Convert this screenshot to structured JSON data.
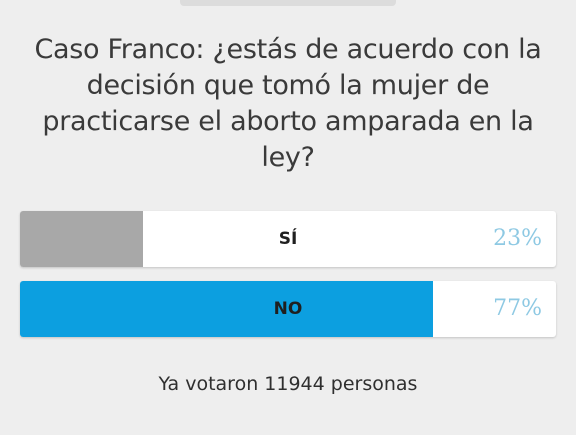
{
  "poll": {
    "question": "Caso Franco: ¿estás de acuerdo con la decisión que tomó la mujer de practicarse el aborto amparada en la ley?",
    "options": [
      {
        "label": "SÍ",
        "percent_label": "23%",
        "fill_fraction": 0.23,
        "fill_color": "#a8a8a8"
      },
      {
        "label": "NO",
        "percent_label": "77%",
        "fill_fraction": 0.77,
        "fill_color": "#0c9fe0"
      }
    ],
    "total_votes_text": "Ya votaron 11944 personas"
  },
  "colors": {
    "background": "#eeeeee",
    "question_text": "#3a3a3a",
    "percent_text": "#8ec9e3",
    "option_background": "#ffffff"
  }
}
